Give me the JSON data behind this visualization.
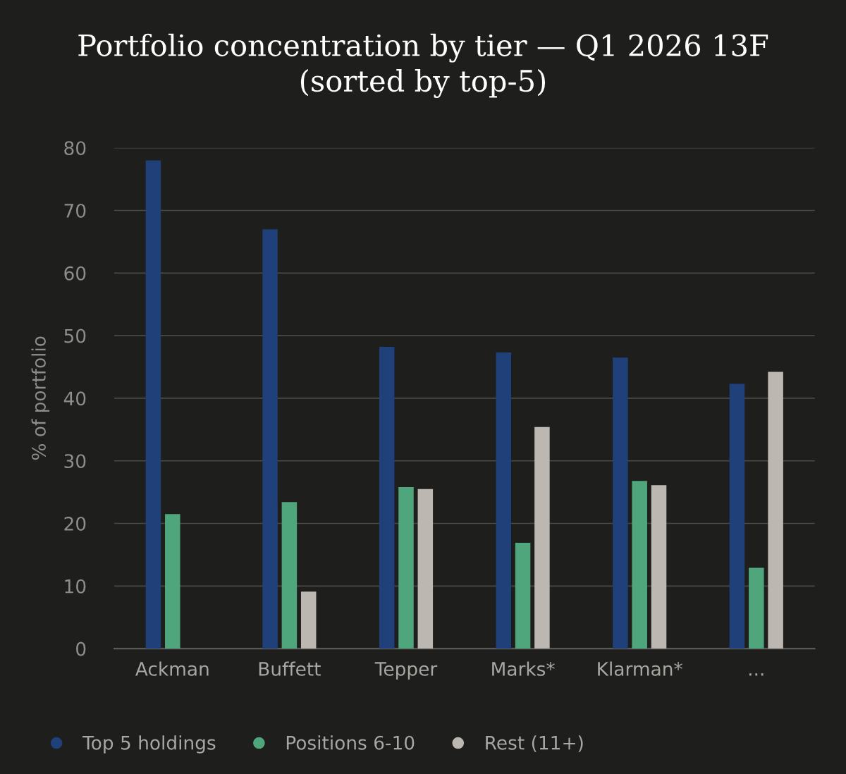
{
  "chart_data": {
    "type": "bar",
    "title": "Portfolio concentration by tier — Q1 2026 13F\n(sorted by top-5)",
    "ylabel": "% of portfolio",
    "categories": [
      "Ackman",
      "Buffett",
      "Tepper",
      "Marks*",
      "Klarman*",
      "..."
    ],
    "series": [
      {
        "name": "Top 5 holdings",
        "color": "#1f4079",
        "values": [
          78,
          67,
          48.2,
          47.3,
          46.5,
          42.3
        ]
      },
      {
        "name": "Positions 6-10",
        "color": "#4fa67d",
        "values": [
          21.5,
          23.4,
          25.8,
          16.9,
          26.8,
          12.9
        ]
      },
      {
        "name": "Rest (11+)",
        "color": "#bcb8b1",
        "values": [
          0,
          9.1,
          25.5,
          35.4,
          26.1,
          44.2
        ]
      }
    ],
    "ylim": [
      0,
      80
    ],
    "yticks": [
      0,
      10,
      20,
      30,
      40,
      50,
      60,
      70,
      80
    ],
    "grid": "y",
    "legend": "bottom"
  }
}
